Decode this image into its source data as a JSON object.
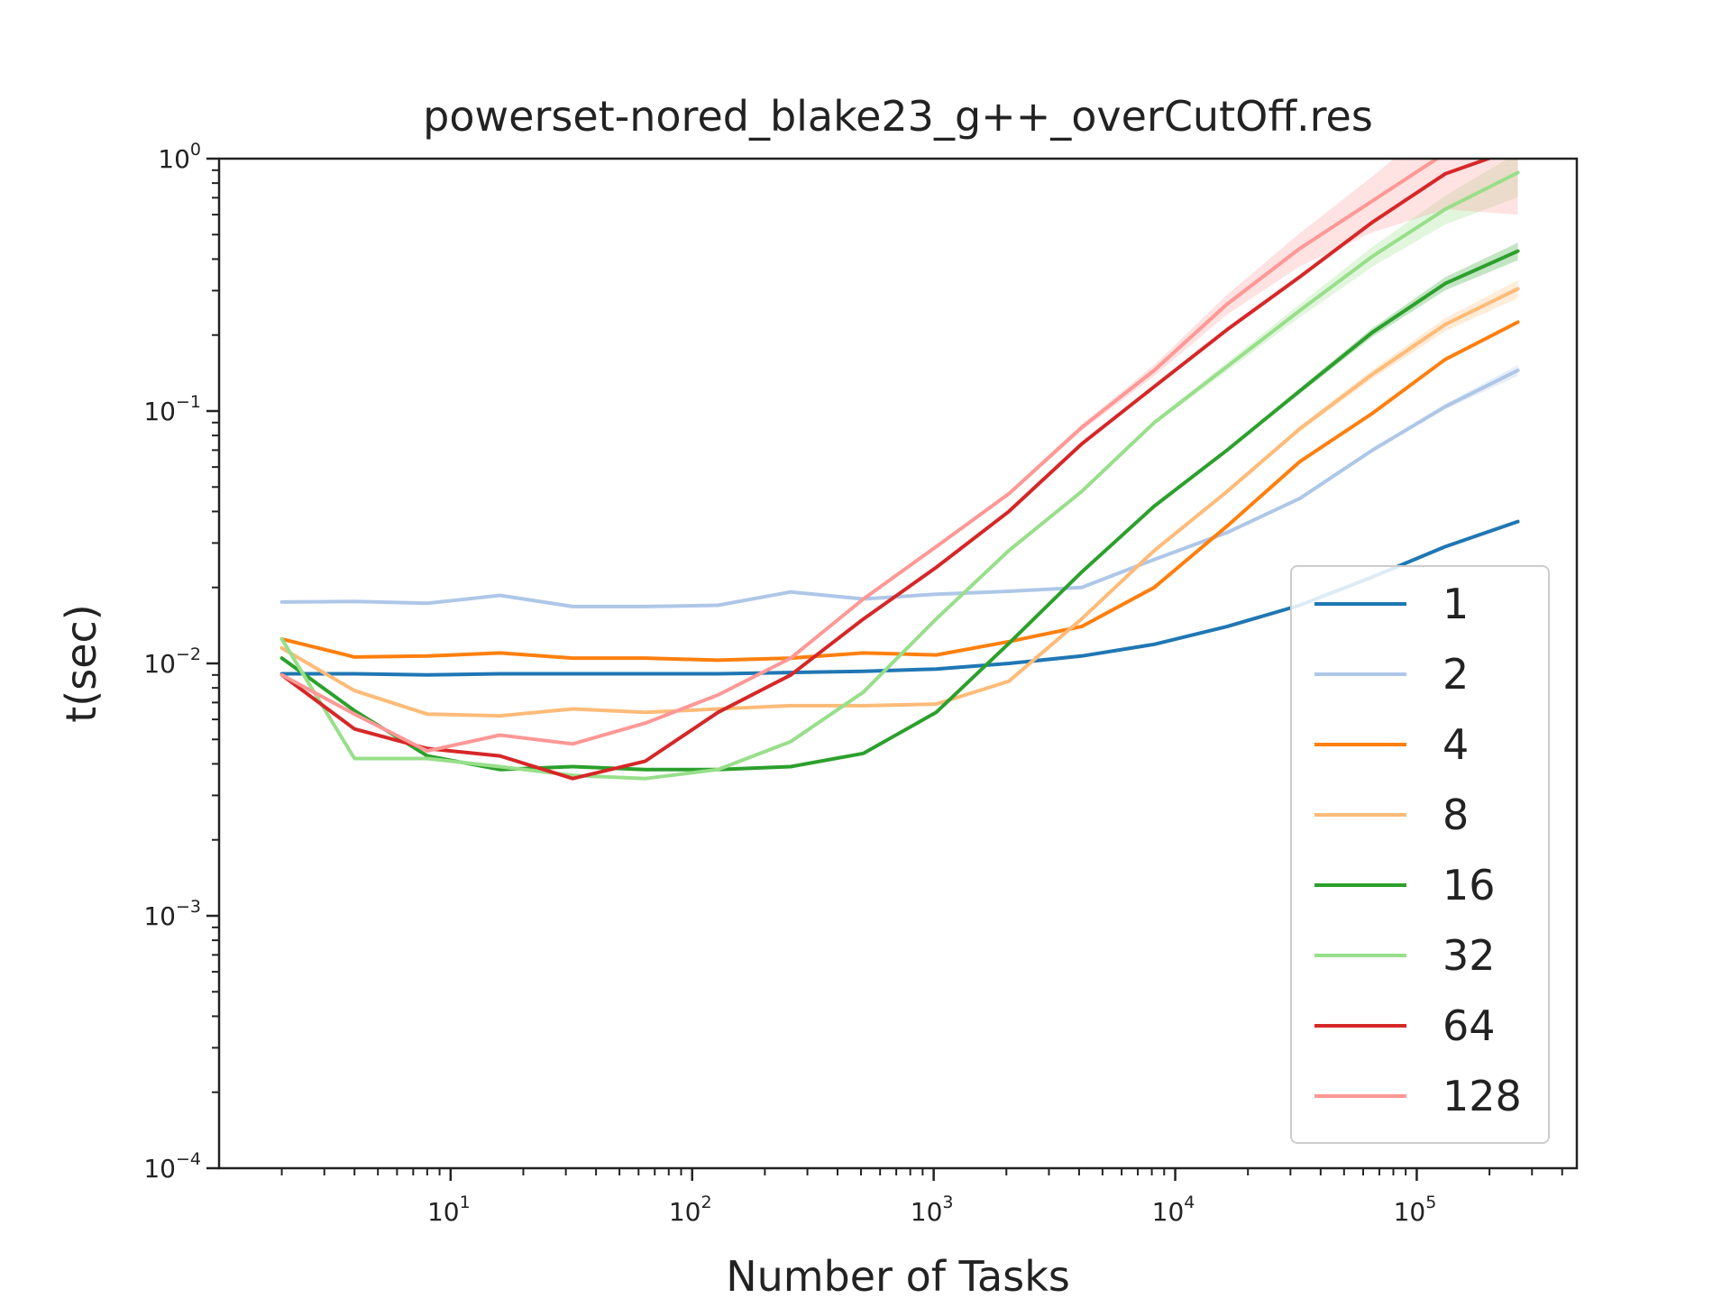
{
  "chart_data": {
    "type": "line",
    "title": "powerset-nored_blake23_g++_overCutOff.res",
    "xlabel": "Number of Tasks",
    "ylabel": "t(sec)",
    "x_scale": "log",
    "y_scale": "log",
    "xlim": [
      1.1,
      460000
    ],
    "ylim": [
      0.0001,
      1
    ],
    "x_ticks": [
      {
        "value": 10,
        "base": "10",
        "exp": "1"
      },
      {
        "value": 100,
        "base": "10",
        "exp": "2"
      },
      {
        "value": 1000,
        "base": "10",
        "exp": "3"
      },
      {
        "value": 10000,
        "base": "10",
        "exp": "4"
      },
      {
        "value": 100000,
        "base": "10",
        "exp": "5"
      }
    ],
    "y_ticks": [
      {
        "value": 0.0001,
        "base": "10",
        "exp": "−4"
      },
      {
        "value": 0.001,
        "base": "10",
        "exp": "−3"
      },
      {
        "value": 0.01,
        "base": "10",
        "exp": "−2"
      },
      {
        "value": 0.1,
        "base": "10",
        "exp": "−1"
      },
      {
        "value": 1,
        "base": "10",
        "exp": "0"
      }
    ],
    "grid": false,
    "legend_position": "bottom-right",
    "x": [
      2,
      4,
      8,
      16,
      32,
      64,
      128,
      256,
      512,
      1024,
      2048,
      4096,
      8192,
      16384,
      32768,
      65536,
      131072,
      262144
    ],
    "series": [
      {
        "name": "1",
        "color": "#1f77b4",
        "values": [
          0.0091,
          0.0091,
          0.009,
          0.0091,
          0.0091,
          0.0091,
          0.0091,
          0.0092,
          0.0093,
          0.0095,
          0.01,
          0.0107,
          0.0119,
          0.014,
          0.017,
          0.022,
          0.029,
          0.0365
        ]
      },
      {
        "name": "2",
        "color": "#aec7e8",
        "values": [
          0.0175,
          0.0176,
          0.0173,
          0.0186,
          0.0168,
          0.0168,
          0.017,
          0.0192,
          0.018,
          0.0188,
          0.0193,
          0.02,
          0.0258,
          0.033,
          0.045,
          0.07,
          0.104,
          0.145
        ],
        "band": [
          0.5,
          0.5,
          0.7,
          0.5,
          0.4,
          0.3,
          0.4,
          0.5,
          0.5,
          0.4,
          0.5,
          0.5,
          0.8,
          1.0,
          1.2,
          1.5,
          2.5,
          5.0
        ]
      },
      {
        "name": "4",
        "color": "#ff7f0e",
        "values": [
          0.0125,
          0.0106,
          0.0107,
          0.011,
          0.0105,
          0.0105,
          0.0103,
          0.0105,
          0.011,
          0.0108,
          0.0122,
          0.014,
          0.02,
          0.035,
          0.063,
          0.098,
          0.16,
          0.225
        ]
      },
      {
        "name": "8",
        "color": "#ffbb78",
        "values": [
          0.0115,
          0.0078,
          0.0063,
          0.0062,
          0.0066,
          0.0064,
          0.0066,
          0.0068,
          0.0068,
          0.0069,
          0.0085,
          0.015,
          0.028,
          0.048,
          0.085,
          0.14,
          0.22,
          0.305
        ],
        "band": [
          0.6,
          0.5,
          0.4,
          0.3,
          0.3,
          0.3,
          0.4,
          0.3,
          0.3,
          0.3,
          0.5,
          1.2,
          1.5,
          2.0,
          2.5,
          4.0,
          6.0,
          8.0
        ]
      },
      {
        "name": "16",
        "color": "#2ca02c",
        "values": [
          0.0105,
          0.0065,
          0.0043,
          0.0038,
          0.0039,
          0.0038,
          0.0038,
          0.0039,
          0.0044,
          0.0064,
          0.012,
          0.023,
          0.042,
          0.07,
          0.12,
          0.205,
          0.32,
          0.43
        ],
        "band": [
          0.8,
          0.7,
          0.8,
          0.3,
          0.3,
          0.2,
          0.2,
          0.2,
          0.2,
          0.3,
          0.5,
          0.8,
          1.0,
          1.5,
          2.5,
          4.0,
          6.0,
          8.0
        ]
      },
      {
        "name": "32",
        "color": "#98df8a",
        "values": [
          0.0125,
          0.0042,
          0.0042,
          0.0039,
          0.0036,
          0.0035,
          0.0038,
          0.0049,
          0.0077,
          0.015,
          0.028,
          0.048,
          0.09,
          0.15,
          0.25,
          0.41,
          0.63,
          0.88
        ],
        "band": [
          1.0,
          0.3,
          1.7,
          0.7,
          0.4,
          0.6,
          0.3,
          0.3,
          0.3,
          0.5,
          1.2,
          1.5,
          2.0,
          4.0,
          6.0,
          9.0,
          13.0,
          20.0
        ]
      },
      {
        "name": "64",
        "color": "#d62728",
        "values": [
          0.009,
          0.0055,
          0.0046,
          0.0043,
          0.0035,
          0.0041,
          0.0064,
          0.009,
          0.015,
          0.024,
          0.04,
          0.074,
          0.125,
          0.21,
          0.34,
          0.56,
          0.87,
          1.1
        ]
      },
      {
        "name": "128",
        "color": "#ff9896",
        "values": [
          0.009,
          0.0063,
          0.0045,
          0.0052,
          0.0048,
          0.0058,
          0.0075,
          0.0105,
          0.018,
          0.029,
          0.047,
          0.086,
          0.145,
          0.265,
          0.44,
          0.68,
          1.05,
          1.5
        ],
        "band": [
          0.4,
          0.3,
          0.4,
          0.4,
          0.3,
          0.4,
          0.6,
          0.7,
          0.9,
          1.4,
          2.0,
          3.0,
          5.0,
          9.0,
          15.0,
          25.0,
          40.0,
          60.0
        ]
      }
    ]
  }
}
